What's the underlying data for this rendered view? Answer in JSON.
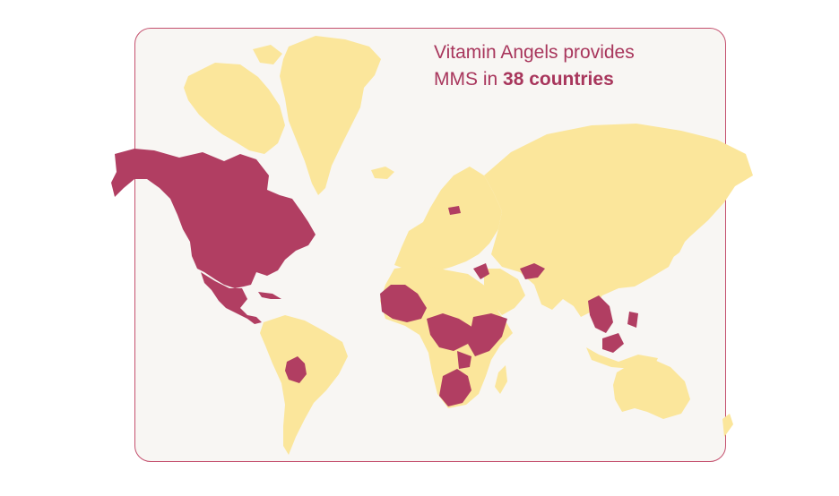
{
  "headline": {
    "line1": "Vitamin Angels provides",
    "line2_prefix": "MMS in",
    "line2_highlight": "38 countries"
  },
  "colors": {
    "card_background": "#f8f6f3",
    "card_border": "#c4506e",
    "land_other": "#fbe69b",
    "land_highlight": "#b13e62",
    "text": "#a8365c"
  },
  "regions": {
    "highlighted": [
      "north-america",
      "central-america",
      "caribbean",
      "bolivia",
      "west-africa",
      "central-africa",
      "east-africa",
      "southern-africa",
      "syria",
      "afghanistan",
      "southeast-asia",
      "philippines",
      "borneo",
      "latvia"
    ]
  }
}
